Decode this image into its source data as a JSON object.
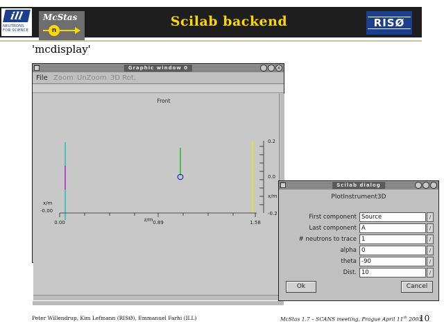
{
  "header": {
    "title": "Scilab backend",
    "ill_logo_mark": "ill",
    "ill_logo_text": "NEUTRONS FOR SCIENCE",
    "mcstas_logo_text": "McStas",
    "mcstas_logo_symbol": "n",
    "riso_logo_text": "RISØ"
  },
  "subtitle": "'mcdisplay'",
  "graphic_window": {
    "title": "Graphic window 0",
    "menu": [
      {
        "label": "File",
        "dim": false
      },
      {
        "label": "Zoom",
        "dim": true
      },
      {
        "label": "UnZoom",
        "dim": true
      },
      {
        "label": "3D Rot.",
        "dim": true
      }
    ],
    "close_glyph": "x",
    "plot": {
      "title": "Front",
      "xlabel": "z/m",
      "ylabel": "x/m",
      "label_left_1": "x/m",
      "label_left_2": "-0.00",
      "x_ticks": [
        "0.00",
        "0.89",
        "1.58"
      ],
      "y_ticks": [
        "0.2",
        "0.0",
        "-0.2"
      ]
    }
  },
  "dialog": {
    "title": "Scilab dialog",
    "heading": "PlotInstrument3D",
    "fields": [
      {
        "label": "First component",
        "value": "Source"
      },
      {
        "label": "Last component",
        "value": "A"
      },
      {
        "label": "# neutrons to trace",
        "value": "1"
      },
      {
        "label": "alpha",
        "value": "0"
      },
      {
        "label": "theta",
        "value": "-90"
      },
      {
        "label": "Dist.",
        "value": "10"
      }
    ],
    "field_button_glyph": "/",
    "ok_label": "Ok",
    "cancel_label": "Cancel"
  },
  "footer": {
    "authors": "Peter Willendrup, Kim Lefmann (RISØ), Emmanuel Farhi (ILL)",
    "event_prefix": "McStas 1.7 – SCANS meeting, Prague April 11",
    "event_sup": "th",
    "event_suffix": " 2003",
    "page_number": "10"
  },
  "colors": {
    "header_bg": "#1e1e1e",
    "title_color": "#ffd700",
    "ill_blue": "#1b3f8c",
    "cyan_component": "#00c0c0",
    "magenta_component": "#d000d0",
    "green_component": "#00c000",
    "yellow_component": "#e8e800",
    "blue_marker": "#0000c0"
  }
}
